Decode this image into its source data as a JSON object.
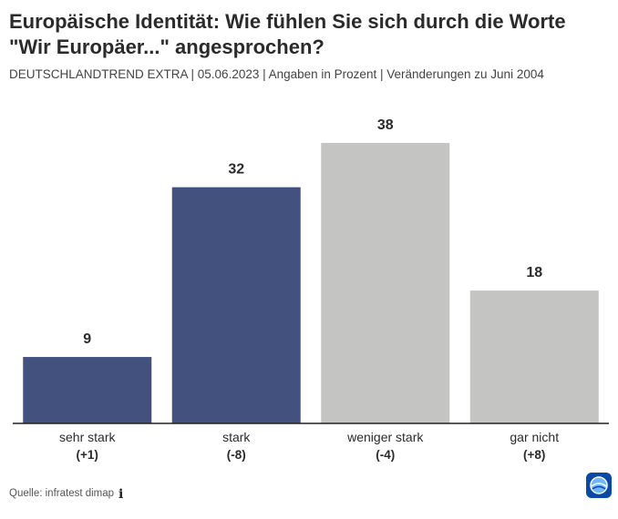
{
  "header": {
    "title": "Europäische Identität: Wie fühlen Sie sich durch die Worte \"Wir Europäer...\" angesprochen?",
    "subtitle": "DEUTSCHLANDTREND EXTRA | 05.06.2023 | Angaben in Prozent | Veränderungen zu Juni 2004"
  },
  "footer": {
    "source": "Quelle: infratest dimap",
    "info_icon": "info-icon",
    "logo_icon": "tagesschau-logo-icon"
  },
  "chart_data": {
    "type": "bar",
    "title": "Europäische Identität: Wie fühlen Sie sich durch die Worte \"Wir Europäer...\" angesprochen?",
    "xlabel": "",
    "ylabel": "",
    "ylim": [
      0,
      40
    ],
    "grid": false,
    "categories": [
      "sehr stark",
      "stark",
      "weniger stark",
      "gar nicht"
    ],
    "changes": [
      "(+1)",
      "(-8)",
      "(-4)",
      "(+8)"
    ],
    "values": [
      9,
      32,
      38,
      18
    ],
    "colors": [
      "#42517e",
      "#42517e",
      "#c4c4c2",
      "#c4c4c2"
    ],
    "baseline_color": "#222222"
  }
}
